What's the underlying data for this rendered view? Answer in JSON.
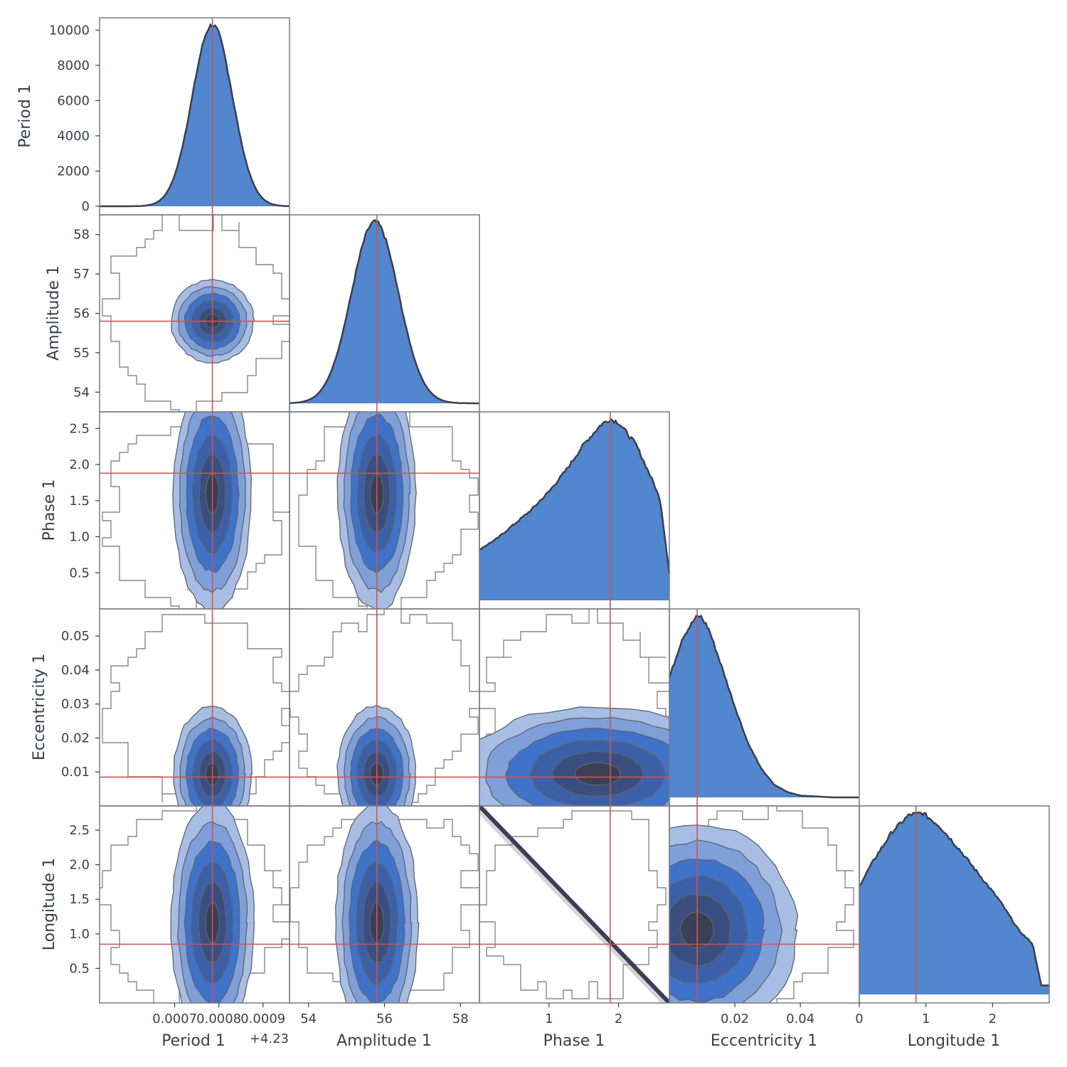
{
  "chart_data": {
    "type": "corner",
    "title": "",
    "parameters": [
      "Period 1",
      "Amplitude 1",
      "Phase 1",
      "Eccentricity 1",
      "Longitude 1"
    ],
    "truths": {
      "Period 1": 4.2307854,
      "Amplitude 1": 55.8,
      "Phase 1": 1.88,
      "Eccentricity 1": 0.0085,
      "Longitude 1": 0.85
    },
    "ranges": {
      "Period 1": [
        4.23053,
        4.23096
      ],
      "Amplitude 1": [
        53.5,
        58.5
      ],
      "Phase 1": [
        0.0,
        2.73
      ],
      "Eccentricity 1": [
        0.0,
        0.058
      ],
      "Longitude 1": [
        0.0,
        2.85
      ]
    },
    "period_offset_label": "+4.23",
    "axis_labels": {
      "x": [
        "Period 1",
        "Amplitude 1",
        "Phase 1",
        "Eccentricity 1",
        "Longitude 1"
      ],
      "y": [
        "Period 1",
        "Amplitude 1",
        "Phase 1",
        "Eccentricity 1",
        "Longitude 1"
      ]
    },
    "x_ticks": {
      "Period 1": [
        {
          "value": 4.2307,
          "label": "0.0007"
        },
        {
          "value": 4.2308,
          "label": "0.0008"
        },
        {
          "value": 4.2309,
          "label": "0.0009"
        }
      ],
      "Amplitude 1": [
        {
          "value": 54,
          "label": "54"
        },
        {
          "value": 56,
          "label": "56"
        },
        {
          "value": 58,
          "label": "58"
        }
      ],
      "Phase 1": [
        {
          "value": 1,
          "label": "1"
        },
        {
          "value": 2,
          "label": "2"
        }
      ],
      "Eccentricity 1": [
        {
          "value": 0.02,
          "label": "0.02"
        },
        {
          "value": 0.04,
          "label": "0.04"
        }
      ],
      "Longitude 1": [
        {
          "value": 0,
          "label": "0"
        },
        {
          "value": 1,
          "label": "1"
        },
        {
          "value": 2,
          "label": "2"
        }
      ]
    },
    "y_ticks": {
      "density": [
        {
          "value": 0,
          "label": "0"
        },
        {
          "value": 2000,
          "label": "2000"
        },
        {
          "value": 4000,
          "label": "4000"
        },
        {
          "value": 6000,
          "label": "6000"
        },
        {
          "value": 8000,
          "label": "8000"
        },
        {
          "value": 10000,
          "label": "10000"
        }
      ],
      "Amplitude 1": [
        {
          "value": 54,
          "label": "54"
        },
        {
          "value": 55,
          "label": "55"
        },
        {
          "value": 56,
          "label": "56"
        },
        {
          "value": 57,
          "label": "57"
        },
        {
          "value": 58,
          "label": "58"
        }
      ],
      "Phase 1": [
        {
          "value": 0.5,
          "label": "0.5"
        },
        {
          "value": 1.0,
          "label": "1.0"
        },
        {
          "value": 1.5,
          "label": "1.5"
        },
        {
          "value": 2.0,
          "label": "2.0"
        },
        {
          "value": 2.5,
          "label": "2.5"
        }
      ],
      "Eccentricity 1": [
        {
          "value": 0.01,
          "label": "0.01"
        },
        {
          "value": 0.02,
          "label": "0.02"
        },
        {
          "value": 0.03,
          "label": "0.03"
        },
        {
          "value": 0.04,
          "label": "0.04"
        },
        {
          "value": 0.05,
          "label": "0.05"
        }
      ],
      "Longitude 1": [
        {
          "value": 0.5,
          "label": "0.5"
        },
        {
          "value": 1.0,
          "label": "1.0"
        },
        {
          "value": 1.5,
          "label": "1.5"
        },
        {
          "value": 2.0,
          "label": "2.0"
        },
        {
          "value": 2.5,
          "label": "2.5"
        }
      ]
    },
    "density_ylim": [
      0,
      10700
    ],
    "marginals": {
      "Period 1": {
        "shape": "gaussian",
        "mean": 4.2307854,
        "sd": 4.55e-05,
        "peak": 10200
      },
      "Amplitude 1": {
        "shape": "gaussian",
        "mean": 55.75,
        "sd": 0.62,
        "peak": 1
      },
      "Phase 1": {
        "shape": "skewed",
        "x": [
          0,
          0.25,
          0.5,
          0.75,
          1.0,
          1.25,
          1.5,
          1.75,
          1.88,
          2.0,
          2.25,
          2.5,
          2.6,
          2.73
        ],
        "y": [
          0.28,
          0.34,
          0.42,
          0.5,
          0.6,
          0.72,
          0.86,
          0.97,
          1.0,
          0.98,
          0.86,
          0.65,
          0.55,
          0.15
        ]
      },
      "Eccentricity 1": {
        "shape": "curve",
        "x": [
          0.0,
          0.004,
          0.008,
          0.0095,
          0.012,
          0.016,
          0.02,
          0.024,
          0.028,
          0.032,
          0.036,
          0.04,
          0.05,
          0.058
        ],
        "y": [
          0.66,
          0.88,
          0.99,
          1.0,
          0.93,
          0.72,
          0.5,
          0.3,
          0.16,
          0.07,
          0.03,
          0.01,
          0.0,
          0.0
        ]
      },
      "Longitude 1": {
        "shape": "curve",
        "x": [
          0.0,
          0.25,
          0.5,
          0.75,
          0.95,
          1.2,
          1.5,
          1.8,
          2.1,
          2.4,
          2.6,
          2.73
        ],
        "y": [
          0.6,
          0.76,
          0.9,
          0.99,
          1.0,
          0.93,
          0.8,
          0.66,
          0.52,
          0.35,
          0.28,
          0.05
        ]
      }
    },
    "contour_levels": 6,
    "contour_colors": [
      "#a8bde3",
      "#7f9fd9",
      "#3f72c9",
      "#3b60a8",
      "#3a4f80",
      "#3a3f55"
    ],
    "colors": {
      "fill": "#5286cf",
      "line": "#3a3f4b",
      "truth": "#cc5555",
      "frame": "#777b83",
      "noise": "#888888"
    }
  }
}
